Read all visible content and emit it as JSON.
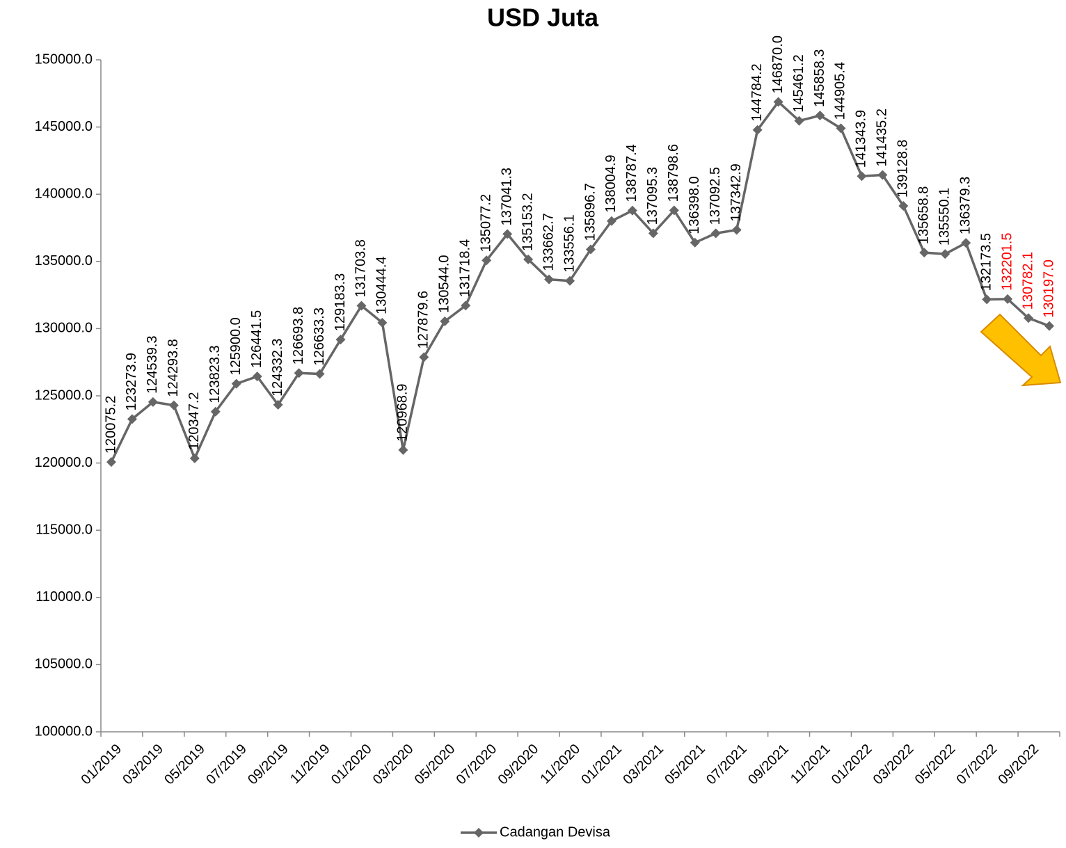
{
  "chart_data": {
    "type": "line",
    "title": "USD Juta",
    "categories": [
      "01/2019",
      null,
      "03/2019",
      null,
      "05/2019",
      null,
      "07/2019",
      null,
      "09/2019",
      null,
      "11/2019",
      null,
      "01/2020",
      null,
      "03/2020",
      null,
      "05/2020",
      null,
      "07/2020",
      null,
      "09/2020",
      null,
      "11/2020",
      null,
      "01/2021",
      null,
      "03/2021",
      null,
      "05/2021",
      null,
      "07/2021",
      null,
      "09/2021",
      null,
      "11/2021",
      null,
      "01/2022",
      null,
      "03/2022",
      null,
      "05/2022",
      null,
      "07/2022",
      null,
      "09/2022",
      null
    ],
    "series": [
      {
        "name": "Cadangan Devisa",
        "color": "#666666",
        "values": [
          120075.2,
          123273.9,
          124539.3,
          124293.8,
          120347.2,
          123823.3,
          125900.0,
          126441.5,
          124332.3,
          126693.8,
          126633.3,
          129183.3,
          131703.8,
          130444.4,
          120968.9,
          127879.6,
          130544.0,
          131718.4,
          135077.2,
          137041.3,
          135153.2,
          133662.7,
          133556.1,
          135896.7,
          138004.9,
          138787.4,
          137095.3,
          138798.6,
          136398.0,
          137092.5,
          137342.9,
          144784.2,
          146870.0,
          145461.2,
          145858.3,
          144905.4,
          141343.9,
          141435.2,
          139128.8,
          135658.8,
          135550.1,
          136379.3,
          132173.5,
          132201.5,
          130782.1,
          130197.0
        ],
        "value_labels": [
          "120075.2",
          "123273.9",
          "124539.3",
          "124293.8",
          "120347.2",
          "123823.3",
          "125900.0",
          "126441.5",
          "124332.3",
          "126693.8",
          "126633.3",
          "129183.3",
          "131703.8",
          "130444.4",
          "120968.9",
          "127879.6",
          "130544.0",
          "131718.4",
          "135077.2",
          "137041.3",
          "135153.2",
          "133662.7",
          "133556.1",
          "135896.7",
          "138004.9",
          "138787.4",
          "137095.3",
          "138798.6",
          "136398.0",
          "137092.5",
          "137342.9",
          "144784.2",
          "146870.0",
          "145461.2",
          "145858.3",
          "144905.4",
          "141343.9",
          "141435.2",
          "139128.8",
          "135658.8",
          "135550.1",
          "136379.3",
          "132173.5",
          "132201.5",
          "130782.1",
          "130197.0"
        ],
        "value_label_colors": [
          "#000000",
          "#000000",
          "#000000",
          "#000000",
          "#000000",
          "#000000",
          "#000000",
          "#000000",
          "#000000",
          "#000000",
          "#000000",
          "#000000",
          "#000000",
          "#000000",
          "#000000",
          "#000000",
          "#000000",
          "#000000",
          "#000000",
          "#000000",
          "#000000",
          "#000000",
          "#000000",
          "#000000",
          "#000000",
          "#000000",
          "#000000",
          "#000000",
          "#000000",
          "#000000",
          "#000000",
          "#000000",
          "#000000",
          "#000000",
          "#000000",
          "#000000",
          "#000000",
          "#000000",
          "#000000",
          "#000000",
          "#000000",
          "#000000",
          "#000000",
          "#ff0000",
          "#ff0000",
          "#ff0000"
        ]
      }
    ],
    "ylim": [
      100000,
      150000
    ],
    "yticks": [
      {
        "value": 100000,
        "label": "100000.0"
      },
      {
        "value": 105000,
        "label": "105000.0"
      },
      {
        "value": 110000,
        "label": "110000.0"
      },
      {
        "value": 115000,
        "label": "115000.0"
      },
      {
        "value": 120000,
        "label": "120000.0"
      },
      {
        "value": 125000,
        "label": "125000.0"
      },
      {
        "value": 130000,
        "label": "130000.0"
      },
      {
        "value": 135000,
        "label": "135000.0"
      },
      {
        "value": 140000,
        "label": "140000.0"
      },
      {
        "value": 145000,
        "label": "145000.0"
      },
      {
        "value": 150000,
        "label": "150000.0"
      }
    ],
    "grid": false,
    "legend": "bottom"
  }
}
